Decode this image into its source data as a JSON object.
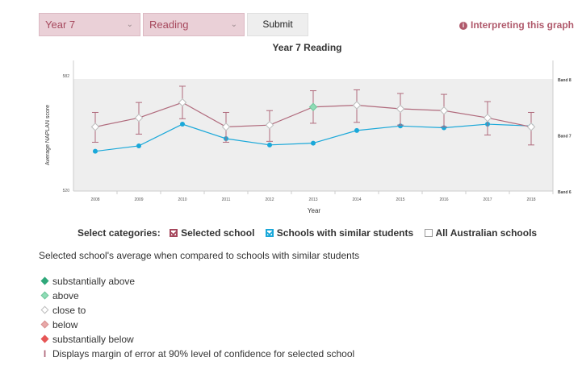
{
  "controls": {
    "year_select": "Year 7",
    "domain_select": "Reading",
    "submit_label": "Submit",
    "interpreting_label": "Interpreting this graph"
  },
  "chart_data": {
    "type": "line",
    "title": "Year 7 Reading",
    "xlabel": "Year",
    "ylabel": "Average NAPLAN score",
    "categories": [
      "2008",
      "2009",
      "2010",
      "2011",
      "2012",
      "2013",
      "2014",
      "2015",
      "2016",
      "2017",
      "2018"
    ],
    "ylim": [
      520,
      582
    ],
    "y_ticks": [
      "520",
      "582"
    ],
    "band_labels": [
      {
        "label": "Band 8",
        "value": 582
      },
      {
        "label": "Band 7",
        "value": 551
      },
      {
        "label": "Band 6",
        "value": 520
      }
    ],
    "grid": false,
    "legend_position": "bottom",
    "series": [
      {
        "name": "Selected school",
        "color": "#b06a7c",
        "values": [
          555.5,
          560.5,
          569,
          555.5,
          556.5,
          566.5,
          567.5,
          565.5,
          564.5,
          560.5,
          555.5
        ],
        "error_low": [
          547,
          551.5,
          560,
          547,
          547.5,
          557.5,
          558,
          556.5,
          555.5,
          551,
          545.5
        ],
        "error_high": [
          563.5,
          569,
          578,
          563.5,
          564.5,
          575.5,
          576,
          574,
          573.5,
          569.5,
          563.5
        ],
        "markers": [
          "close to",
          "close to",
          "close to",
          "close to",
          "close to",
          "above",
          "close to",
          "close to",
          "close to",
          "close to",
          "close to"
        ]
      },
      {
        "name": "Schools with similar students",
        "color": "#1aa8d9",
        "values": [
          542,
          545,
          557,
          549,
          545.5,
          546.5,
          553.5,
          556,
          555,
          557,
          556
        ]
      }
    ]
  },
  "categories_bar": {
    "label": "Select categories:",
    "items": [
      {
        "label": "Selected school",
        "checked": true
      },
      {
        "label": "Schools with similar students",
        "checked": true
      },
      {
        "label": "All Australian schools",
        "checked": false
      }
    ]
  },
  "description": "Selected school's average when compared to schools with similar students",
  "legend": {
    "items": [
      {
        "label": "substantially above",
        "color": "#2fa87a",
        "border": "#2fa87a"
      },
      {
        "label": "above",
        "color": "#8fdcb6",
        "border": "#6fc59a"
      },
      {
        "label": "close to",
        "color": "#ffffff",
        "border": "#bbbbbb"
      },
      {
        "label": "below",
        "color": "#e8a9a9",
        "border": "#d98f8f"
      },
      {
        "label": "substantially below",
        "color": "#e65656",
        "border": "#e65656"
      }
    ],
    "error_label": "Displays margin of error at 90% level of confidence for selected school"
  },
  "colors": {
    "plot_background": "#eeeeee",
    "selected_school": "#b06a7c",
    "similar_schools": "#1aa8d9",
    "accent": "#a6485d"
  }
}
